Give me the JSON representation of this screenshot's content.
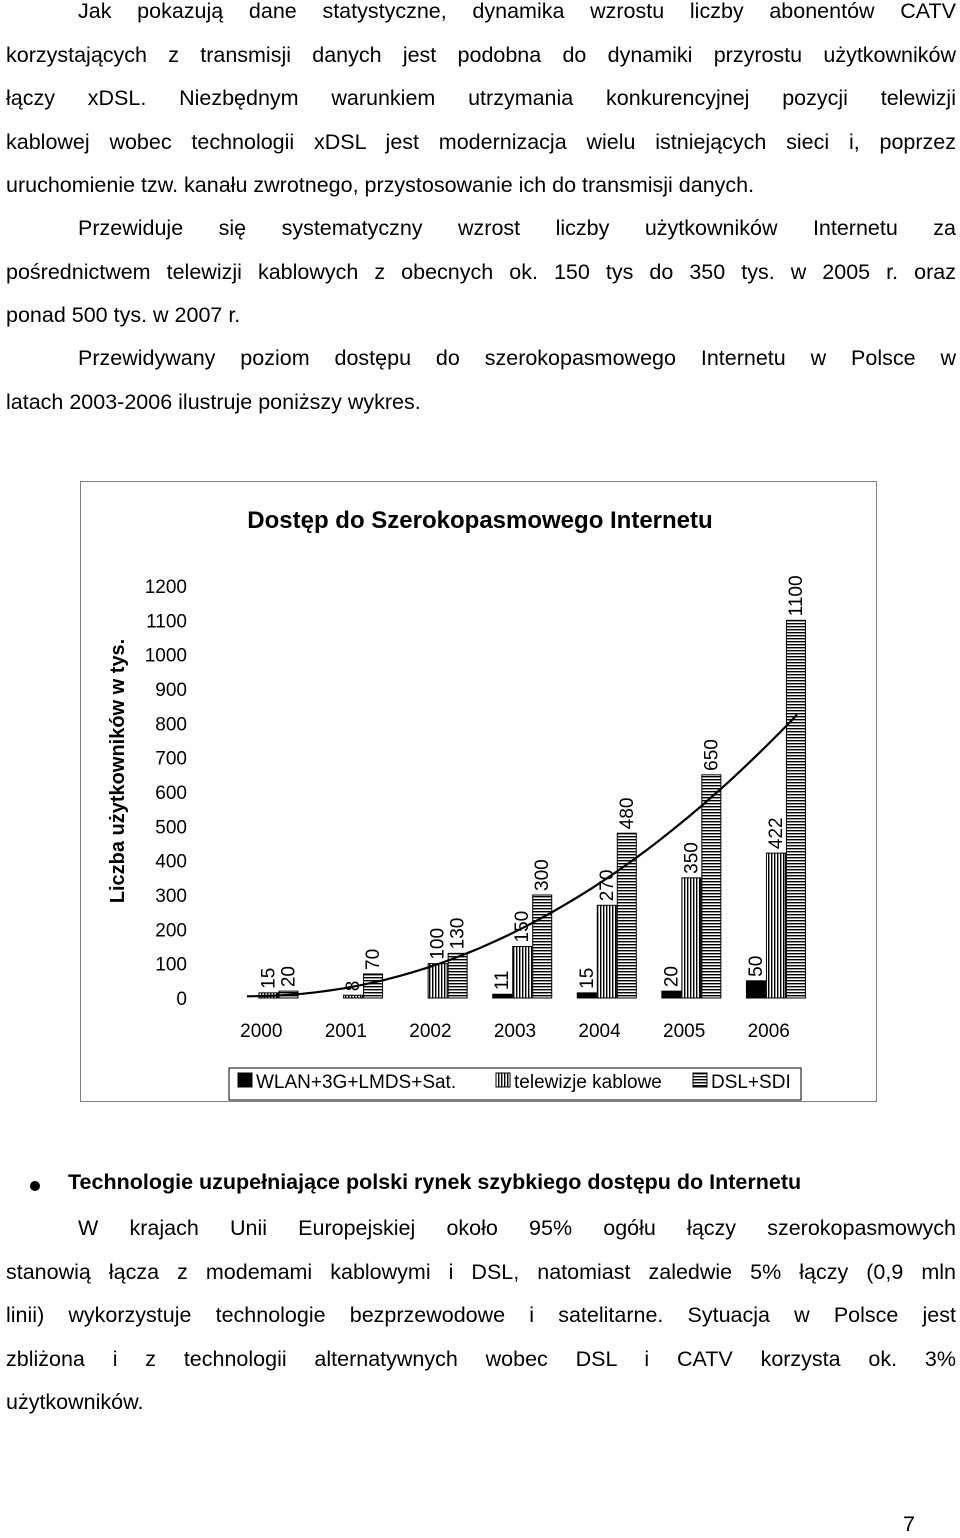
{
  "intro_paragraphs": [
    {
      "lines": [
        "Jak pokazują dane statystyczne, dynamika wzrostu liczby abonentów CATV",
        "korzystających z transmisji danych jest podobna do dynamiki przyrostu użytkowników",
        "łączy xDSL. Niezbędnym warunkiem utrzymania konkurencyjnej pozycji telewizji",
        "kablowej wobec technologii xDSL jest modernizacja wielu istniejących sieci i, poprzez",
        "uruchomienie tzw. kanału zwrotnego, przystosowanie ich do transmisji danych."
      ]
    },
    {
      "lines": [
        "Przewiduje się systematyczny wzrost liczby użytkowników Internetu za",
        "pośrednictwem telewizji kablowych z obecnych ok. 150 tys do 350 tys. w 2005 r. oraz",
        "ponad 500 tys. w 2007 r."
      ]
    },
    {
      "lines": [
        "Przewidywany poziom dostępu do szerokopasmowego Internetu w Polsce w",
        "latach 2003-2006 ilustruje poniższy wykres."
      ]
    }
  ],
  "chart_data": {
    "type": "bar",
    "title": "Dostęp do Szerokopasmowego Internetu",
    "ylabel": "Liczba użytkowników w tys.",
    "xlabel": "",
    "ylim": [
      0,
      1200
    ],
    "yticks": [
      0,
      100,
      200,
      300,
      400,
      500,
      600,
      700,
      800,
      900,
      1000,
      1100,
      1200
    ],
    "categories": [
      "2000",
      "2001",
      "2002",
      "2003",
      "2004",
      "2005",
      "2006"
    ],
    "legend_position": "bottom",
    "grid": false,
    "series": [
      {
        "name": "WLAN+3G+LMDS+Sat.",
        "pattern": "solid",
        "color": "#000000",
        "values": [
          null,
          null,
          null,
          11,
          15,
          20,
          50
        ],
        "labels": [
          "",
          "",
          "",
          "11",
          "15",
          "20",
          "50"
        ]
      },
      {
        "name": "telewizje kablowe",
        "pattern": "vertical",
        "color": "#000000",
        "values": [
          15,
          8,
          100,
          150,
          270,
          350,
          422
        ],
        "labels": [
          "15",
          "8",
          "100",
          "150",
          "270",
          "350",
          "422"
        ]
      },
      {
        "name": "DSL+SDI",
        "pattern": "horizontal",
        "color": "#000000",
        "values": [
          20,
          70,
          130,
          300,
          480,
          650,
          1100
        ],
        "labels": [
          "20",
          "70",
          "130",
          "300",
          "480",
          "650",
          "1100"
        ]
      }
    ],
    "trendline": "curve"
  },
  "section": {
    "heading": "Technologie uzupełniające polski rynek szybkiego dostępu do Internetu",
    "lines": [
      "W krajach Unii Europejskiej około 95%  ogółu łączy szerokopasmowych",
      "stanowią łącza z modemami kablowymi i DSL, natomiast zaledwie 5% łączy (0,9 mln",
      "linii) wykorzystuje technologie bezprzewodowe i satelitarne. Sytuacja w Polsce jest",
      "zbliżona i z technologii alternatywnych wobec DSL i CATV korzysta ok. 3%",
      "użytkowników."
    ]
  },
  "page_number": "7"
}
